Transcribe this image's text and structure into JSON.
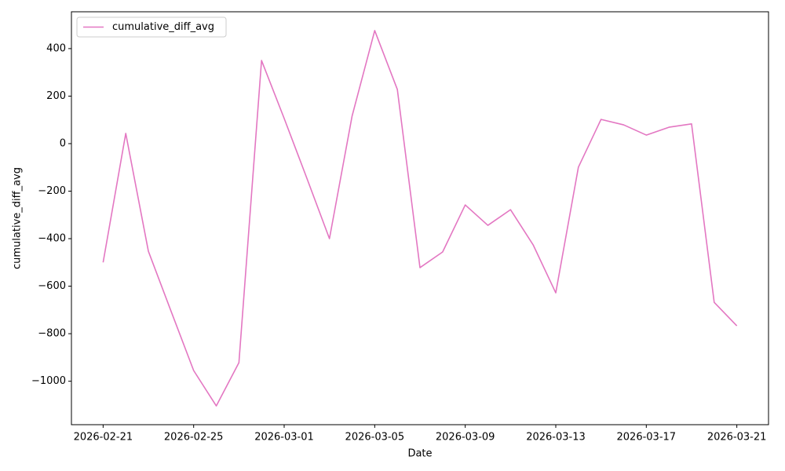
{
  "chart_data": {
    "type": "line",
    "x": [
      "2026-02-21",
      "2026-02-22",
      "2026-02-23",
      "2026-02-24",
      "2026-02-25",
      "2026-02-26",
      "2026-02-27",
      "2026-02-28",
      "2026-03-01",
      "2026-03-02",
      "2026-03-03",
      "2026-03-04",
      "2026-03-05",
      "2026-03-06",
      "2026-03-07",
      "2026-03-08",
      "2026-03-09",
      "2026-03-10",
      "2026-03-11",
      "2026-03-12",
      "2026-03-13",
      "2026-03-14",
      "2026-03-15",
      "2026-03-16",
      "2026-03-17",
      "2026-03-18",
      "2026-03-19",
      "2026-03-20",
      "2026-03-21"
    ],
    "series": [
      {
        "name": "cumulative_diff_avg",
        "color": "#e377c2",
        "values": [
          -500,
          43,
          -453,
          -705,
          -955,
          -1104,
          -922,
          350,
          106,
          -145,
          -400,
          116,
          476,
          228,
          -522,
          -456,
          -258,
          -344,
          -278,
          -426,
          -628,
          -99,
          102,
          79,
          36,
          69,
          83,
          -668,
          -767
        ]
      }
    ],
    "xlabel": "Date",
    "ylabel": "cumulative_diff_avg",
    "xlim": [
      "2026-02-19T14:24:00",
      "2026-03-22T09:36:00"
    ],
    "xticks": [
      "2026-02-21",
      "2026-02-25",
      "2026-03-01",
      "2026-03-05",
      "2026-03-09",
      "2026-03-13",
      "2026-03-17",
      "2026-03-21"
    ],
    "ylim": [
      -1183,
      555
    ],
    "yticks": [
      {
        "value": -1000,
        "label": "−1000"
      },
      {
        "value": -800,
        "label": "−800"
      },
      {
        "value": -600,
        "label": "−600"
      },
      {
        "value": -400,
        "label": "−400"
      },
      {
        "value": -200,
        "label": "−200"
      },
      0,
      200,
      400
    ],
    "grid": false,
    "legend": "upper-left"
  }
}
